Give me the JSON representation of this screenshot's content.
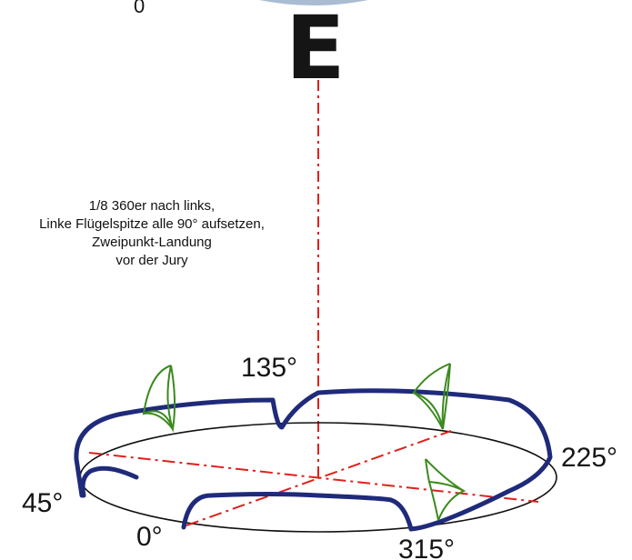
{
  "figure": {
    "corner_label": "0",
    "big_letter": "E",
    "instructions": [
      "1/8 360er nach links,",
      "Linke Flügelspitze alle 90° aufsetzen,",
      "Zweipunkt-Landung",
      "vor der Jury"
    ],
    "angle_labels": {
      "a135": "135°",
      "a225": "225°",
      "a45": "45°",
      "a0": "0°",
      "a315": "315°"
    }
  },
  "colors": {
    "ink": "#151515",
    "flight_path": "#1f2a7a",
    "axis_lines": "#e0201c",
    "kite_outline": "#3a8a1e",
    "ellipse": "#111111"
  }
}
